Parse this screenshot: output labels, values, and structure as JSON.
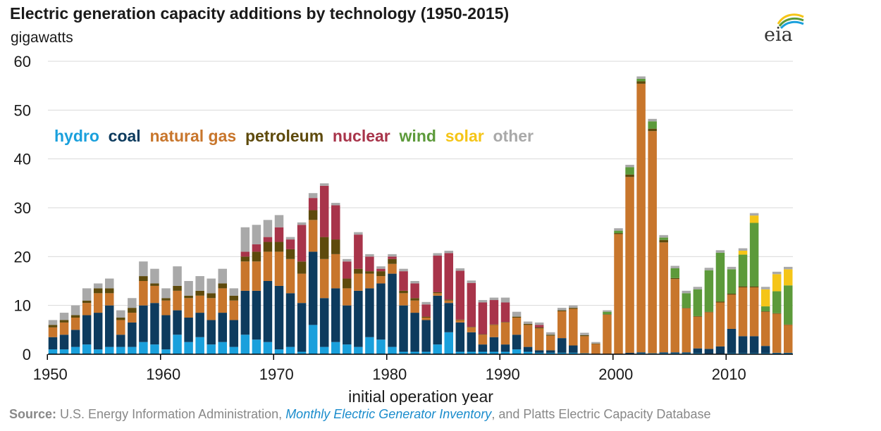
{
  "title": "Electric generation capacity additions by technology (1950-2015)",
  "units": "gigawatts",
  "logo_text": "eia",
  "source": {
    "label": "Source:",
    "prefix": " U.S. Energy Information Administration, ",
    "link": "Monthly Electric Generator Inventory",
    "suffix": ", and Platts Electric Capacity Database"
  },
  "colors": {
    "hydro": "#1aa0dc",
    "coal": "#0d3b5e",
    "natural gas": "#c8762c",
    "petroleum": "#5e4a0c",
    "nuclear": "#a8344a",
    "wind": "#5c9a3a",
    "solar": "#f5c518",
    "other": "#a9a9a9"
  },
  "chart_data": {
    "type": "bar",
    "stacked": true,
    "xlabel": "initial operation year",
    "ylabel": "",
    "ylim": [
      0,
      60
    ],
    "yticks": [
      0,
      10,
      20,
      30,
      40,
      50,
      60
    ],
    "xticks": [
      1950,
      1960,
      1970,
      1980,
      1990,
      2000,
      2010
    ],
    "grid": true,
    "legend_position": "inside-top-left",
    "categories": [
      1950,
      1951,
      1952,
      1953,
      1954,
      1955,
      1956,
      1957,
      1958,
      1959,
      1960,
      1961,
      1962,
      1963,
      1964,
      1965,
      1966,
      1967,
      1968,
      1969,
      1970,
      1971,
      1972,
      1973,
      1974,
      1975,
      1976,
      1977,
      1978,
      1979,
      1980,
      1981,
      1982,
      1983,
      1984,
      1985,
      1986,
      1987,
      1988,
      1989,
      1990,
      1991,
      1992,
      1993,
      1994,
      1995,
      1996,
      1997,
      1998,
      1999,
      2000,
      2001,
      2002,
      2003,
      2004,
      2005,
      2006,
      2007,
      2008,
      2009,
      2010,
      2011,
      2012,
      2013,
      2014,
      2015
    ],
    "series": [
      {
        "name": "hydro",
        "values": [
          1.0,
          1.0,
          1.5,
          2.0,
          1.0,
          1.5,
          1.5,
          1.5,
          2.5,
          2.0,
          1.0,
          4.0,
          2.5,
          3.5,
          2.0,
          2.5,
          1.5,
          4.0,
          3.0,
          2.5,
          1.0,
          1.5,
          0.5,
          6.0,
          1.5,
          2.5,
          2.0,
          1.5,
          3.5,
          3.0,
          1.5,
          0.5,
          0.5,
          0.5,
          2.0,
          4.5,
          0.5,
          0.5,
          0.5,
          0.5,
          0.5,
          1.0,
          0.5,
          0.3,
          0.3,
          0.3,
          0.3,
          0.2,
          0.1,
          0.1,
          0.1,
          0.1,
          0.2,
          0.2,
          0.2,
          0.2,
          0.2,
          0.2,
          0.1,
          0.1,
          0.2,
          0.2,
          0.2,
          0.2,
          0.2,
          0.2
        ]
      },
      {
        "name": "coal",
        "values": [
          2.5,
          3.0,
          3.5,
          6.0,
          7.5,
          8.5,
          2.5,
          5.0,
          7.5,
          8.5,
          7.0,
          5.0,
          5.0,
          5.0,
          5.0,
          6.0,
          5.5,
          9.0,
          10.0,
          12.5,
          13.0,
          11.0,
          10.0,
          15.0,
          10.0,
          11.0,
          8.0,
          11.5,
          10.0,
          11.5,
          15.0,
          9.5,
          8.0,
          6.5,
          10.0,
          6.0,
          6.0,
          4.0,
          1.5,
          3.0,
          1.5,
          3.0,
          1.0,
          0.5,
          0.5,
          3.0,
          1.5,
          0.0,
          0.0,
          0.0,
          0.0,
          0.2,
          0.2,
          0.0,
          0.2,
          0.2,
          0.2,
          1.0,
          1.0,
          1.5,
          5.0,
          3.5,
          3.5,
          1.5,
          0.1,
          0.1
        ]
      },
      {
        "name": "natural gas",
        "values": [
          2.0,
          2.5,
          2.5,
          2.5,
          4.0,
          2.5,
          3.0,
          2.0,
          5.0,
          3.5,
          3.0,
          4.0,
          4.0,
          3.5,
          4.5,
          5.0,
          4.0,
          6.0,
          6.0,
          6.0,
          7.0,
          7.0,
          6.0,
          6.5,
          8.0,
          7.0,
          3.5,
          3.5,
          3.0,
          1.5,
          2.0,
          2.5,
          2.5,
          0.5,
          0.5,
          0.5,
          0.5,
          1.0,
          2.0,
          2.5,
          4.5,
          3.5,
          4.5,
          4.5,
          3.0,
          5.5,
          7.5,
          3.5,
          2.0,
          8.0,
          24.5,
          36.0,
          55.0,
          45.5,
          22.5,
          15.0,
          9.0,
          6.5,
          7.5,
          9.0,
          7.0,
          10.0,
          10.0,
          7.0,
          8.0,
          5.7
        ]
      },
      {
        "name": "petroleum",
        "values": [
          0.5,
          0.5,
          0.5,
          0.5,
          1.0,
          1.0,
          0.5,
          1.0,
          1.0,
          0.5,
          0.5,
          1.0,
          0.5,
          1.0,
          1.0,
          1.0,
          1.0,
          1.0,
          2.0,
          2.0,
          2.0,
          2.0,
          2.5,
          2.0,
          4.5,
          3.0,
          2.0,
          1.0,
          0.5,
          1.0,
          1.0,
          0.5,
          0.5,
          0.2,
          0.2,
          0.2,
          0.1,
          0.1,
          0.1,
          0.1,
          0.1,
          0.2,
          0.2,
          0.2,
          0.2,
          0.2,
          0.2,
          0.2,
          0.1,
          0.1,
          0.2,
          0.5,
          0.5,
          0.5,
          0.5,
          0.2,
          0.1,
          0.1,
          0.1,
          0.2,
          0.2,
          0.2,
          0.2,
          0.1,
          0.1,
          0.1
        ]
      },
      {
        "name": "nuclear",
        "values": [
          0,
          0,
          0,
          0,
          0,
          0,
          0,
          0,
          0,
          0,
          0,
          0,
          0,
          0,
          0,
          0,
          0,
          1.0,
          1.5,
          1.0,
          3.0,
          2.0,
          7.5,
          2.5,
          10.5,
          7.0,
          3.5,
          7.0,
          3.0,
          0.5,
          0.5,
          4.0,
          3.0,
          2.5,
          7.5,
          9.5,
          10.0,
          9.0,
          6.5,
          5.0,
          4.0,
          0,
          0,
          0.5,
          0,
          0,
          0,
          0,
          0,
          0,
          0,
          0,
          0,
          0,
          0,
          0,
          0,
          0,
          0,
          0,
          0,
          0,
          0,
          0,
          0,
          0
        ]
      },
      {
        "name": "wind",
        "values": [
          0,
          0,
          0,
          0,
          0,
          0,
          0,
          0,
          0,
          0,
          0,
          0,
          0,
          0,
          0,
          0,
          0,
          0,
          0,
          0,
          0,
          0,
          0,
          0,
          0,
          0,
          0,
          0,
          0,
          0,
          0,
          0,
          0,
          0,
          0,
          0,
          0,
          0,
          0,
          0,
          0,
          0,
          0,
          0,
          0,
          0,
          0,
          0,
          0,
          0.5,
          0.5,
          1.5,
          0.5,
          1.5,
          0.5,
          2.0,
          3.0,
          5.5,
          8.5,
          10.0,
          5.0,
          6.5,
          13.0,
          1.0,
          4.5,
          8.0
        ]
      },
      {
        "name": "solar",
        "values": [
          0,
          0,
          0,
          0,
          0,
          0,
          0,
          0,
          0,
          0,
          0,
          0,
          0,
          0,
          0,
          0,
          0,
          0,
          0,
          0,
          0,
          0,
          0,
          0,
          0,
          0,
          0,
          0,
          0,
          0,
          0,
          0,
          0,
          0,
          0,
          0,
          0,
          0,
          0,
          0,
          0,
          0,
          0,
          0,
          0,
          0,
          0,
          0,
          0,
          0,
          0,
          0,
          0,
          0,
          0,
          0,
          0,
          0,
          0,
          0,
          0,
          0.8,
          1.5,
          3.5,
          3.5,
          3.3
        ]
      },
      {
        "name": "other",
        "values": [
          1.0,
          1.5,
          2.0,
          2.5,
          1.0,
          2.0,
          1.5,
          2.0,
          3.0,
          3.0,
          2.0,
          4.0,
          3.0,
          3.0,
          3.0,
          3.0,
          1.5,
          5.0,
          4.0,
          3.5,
          2.5,
          0.5,
          0.5,
          1.0,
          0.5,
          0.5,
          0.5,
          0.5,
          0.5,
          0.5,
          0.5,
          0.5,
          0.5,
          0.5,
          0.5,
          0.5,
          0.5,
          0.5,
          0.5,
          0.5,
          1.0,
          1.0,
          0.5,
          0.5,
          0.5,
          0.5,
          0.5,
          0.5,
          0.3,
          0.3,
          0.5,
          0.5,
          0.5,
          0.5,
          0.5,
          0.5,
          0.5,
          0.5,
          0.5,
          0.5,
          0.5,
          0.5,
          0.5,
          0.5,
          0.5,
          0.5
        ]
      }
    ]
  }
}
